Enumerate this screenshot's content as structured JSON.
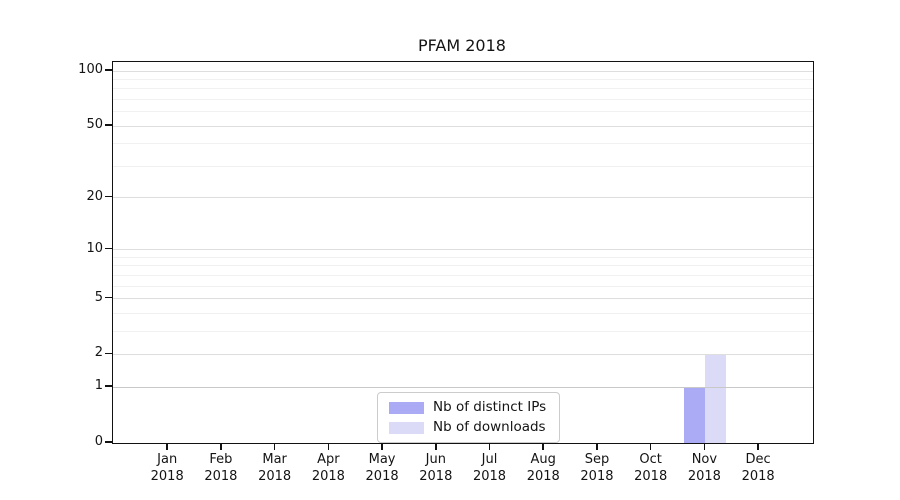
{
  "chart_data": {
    "type": "bar",
    "title": "PFAM 2018",
    "categories": [
      "Jan 2018",
      "Feb 2018",
      "Mar 2018",
      "Apr 2018",
      "May 2018",
      "Jun 2018",
      "Jul 2018",
      "Aug 2018",
      "Sep 2018",
      "Oct 2018",
      "Nov 2018",
      "Dec 2018"
    ],
    "series": [
      {
        "name": "Nb of distinct IPs",
        "color": "#aaaaf5",
        "values": [
          0,
          0,
          0,
          0,
          0,
          0,
          0,
          0,
          0,
          0,
          1,
          0
        ]
      },
      {
        "name": "Nb of downloads",
        "color": "#dbdbf8",
        "values": [
          0,
          0,
          0,
          0,
          0,
          0,
          0,
          0,
          0,
          0,
          2,
          0
        ]
      }
    ],
    "xlabel": "",
    "ylabel": "",
    "y_scale": "log1p",
    "ylim": [
      0,
      112
    ],
    "y_ticks": [
      0,
      1,
      2,
      5,
      10,
      20,
      50,
      100
    ],
    "y_minor_gridlines": [
      3,
      4,
      6,
      7,
      8,
      9,
      30,
      40,
      60,
      70,
      80,
      90
    ],
    "grid": "horizontal-major-and-minor",
    "legend_position": "lower-center",
    "colors": {
      "major_grid": "#dedede",
      "unit_grid": "#c8c8c8",
      "minor_grid": "#f1f1f1",
      "axis": "#121212"
    }
  }
}
